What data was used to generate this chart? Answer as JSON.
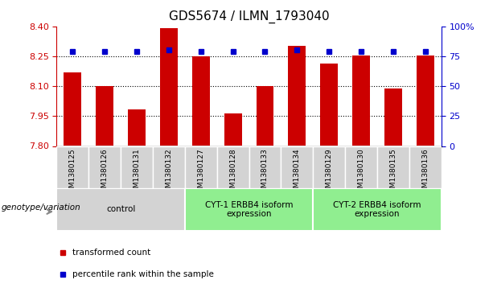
{
  "title": "GDS5674 / ILMN_1793040",
  "samples": [
    "GSM1380125",
    "GSM1380126",
    "GSM1380131",
    "GSM1380132",
    "GSM1380127",
    "GSM1380128",
    "GSM1380133",
    "GSM1380134",
    "GSM1380129",
    "GSM1380130",
    "GSM1380135",
    "GSM1380136"
  ],
  "transformed_counts": [
    8.17,
    8.1,
    7.985,
    8.39,
    8.25,
    7.965,
    8.1,
    8.3,
    8.215,
    8.255,
    8.09,
    8.255
  ],
  "percentile_ranks": [
    79,
    79,
    79,
    80,
    79,
    79,
    79,
    80,
    79,
    79,
    79,
    79
  ],
  "ylim_left": [
    7.8,
    8.4
  ],
  "ylim_right": [
    0,
    100
  ],
  "yticks_left": [
    7.8,
    7.95,
    8.1,
    8.25,
    8.4
  ],
  "yticks_right": [
    0,
    25,
    50,
    75,
    100
  ],
  "ytick_labels_right": [
    "0",
    "25",
    "50",
    "75",
    "100%"
  ],
  "bar_color": "#CC0000",
  "dot_color": "#0000CC",
  "bar_width": 0.55,
  "groups": [
    {
      "label": "control",
      "start": 0,
      "end": 3,
      "color": "#d3d3d3"
    },
    {
      "label": "CYT-1 ERBB4 isoform\nexpression",
      "start": 4,
      "end": 7,
      "color": "#90ee90"
    },
    {
      "label": "CYT-2 ERBB4 isoform\nexpression",
      "start": 8,
      "end": 11,
      "color": "#90ee90"
    }
  ],
  "legend_items": [
    {
      "label": "transformed count",
      "color": "#CC0000"
    },
    {
      "label": "percentile rank within the sample",
      "color": "#0000CC"
    }
  ],
  "genotype_label": "genotype/variation",
  "background_color": "#ffffff",
  "base_value": 7.8,
  "sample_cell_color": "#d3d3d3",
  "left_axis_color": "#CC0000",
  "right_axis_color": "#0000CC"
}
